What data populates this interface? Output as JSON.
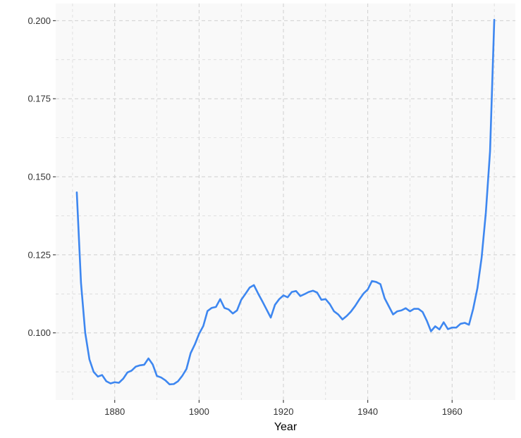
{
  "chart_data": {
    "type": "line",
    "title": "",
    "xlabel": "Year",
    "ylabel": "",
    "xlim": [
      1866,
      1975
    ],
    "ylim": [
      0.0785,
      0.2055
    ],
    "x_ticks": [
      1880,
      1900,
      1920,
      1940,
      1960
    ],
    "x_tick_labels": [
      "1880",
      "1900",
      "1920",
      "1940",
      "1960"
    ],
    "y_ticks": [
      0.1,
      0.125,
      0.15,
      0.175,
      0.2
    ],
    "y_tick_labels": [
      "0.100",
      "0.125",
      "0.150",
      "0.175",
      "0.200"
    ],
    "grid": true,
    "legend": "none",
    "colors": {
      "line": "#3e87f0",
      "panel": "#f9f9f9",
      "grid": "#cfcfcf"
    },
    "series": [
      {
        "x": [
          1871,
          1872,
          1873,
          1874,
          1875,
          1876,
          1877,
          1878,
          1879,
          1880,
          1881,
          1882,
          1883,
          1884,
          1885,
          1886,
          1887,
          1888,
          1889,
          1890,
          1891,
          1892,
          1893,
          1894,
          1895,
          1896,
          1897,
          1898,
          1899,
          1900,
          1901,
          1902,
          1903,
          1904,
          1905,
          1906,
          1907,
          1908,
          1909,
          1910,
          1911,
          1912,
          1913,
          1914,
          1915,
          1916,
          1917,
          1918,
          1919,
          1920,
          1921,
          1922,
          1923,
          1924,
          1925,
          1926,
          1927,
          1928,
          1929,
          1930,
          1931,
          1932,
          1933,
          1934,
          1935,
          1936,
          1937,
          1938,
          1939,
          1940,
          1941,
          1942,
          1943,
          1944,
          1945,
          1946,
          1947,
          1948,
          1949,
          1950,
          1951,
          1952,
          1953,
          1954,
          1955,
          1956,
          1957,
          1958,
          1959,
          1960,
          1961,
          1962,
          1963,
          1964,
          1965,
          1966,
          1967,
          1968,
          1969,
          1970
        ],
        "values": [
          0.145,
          0.116,
          0.1,
          0.0915,
          0.0875,
          0.086,
          0.0865,
          0.0845,
          0.0838,
          0.0842,
          0.084,
          0.0853,
          0.0873,
          0.0879,
          0.0892,
          0.0896,
          0.0898,
          0.0918,
          0.0899,
          0.0862,
          0.0857,
          0.0848,
          0.0835,
          0.0836,
          0.0845,
          0.0862,
          0.0884,
          0.0935,
          0.0963,
          0.0997,
          0.1022,
          0.107,
          0.108,
          0.1083,
          0.1108,
          0.108,
          0.1075,
          0.1062,
          0.1072,
          0.1106,
          0.1125,
          0.1145,
          0.1153,
          0.1126,
          0.1101,
          0.1075,
          0.1049,
          0.109,
          0.1108,
          0.112,
          0.1114,
          0.1131,
          0.1134,
          0.1118,
          0.1124,
          0.1131,
          0.1135,
          0.1129,
          0.1106,
          0.1108,
          0.1092,
          0.1069,
          0.1059,
          0.1043,
          0.1054,
          0.1068,
          0.1086,
          0.1107,
          0.1126,
          0.1139,
          0.1166,
          0.1163,
          0.1156,
          0.1111,
          0.1085,
          0.1059,
          0.1069,
          0.1072,
          0.1079,
          0.1069,
          0.1077,
          0.1077,
          0.1067,
          0.1039,
          0.1005,
          0.1021,
          0.1011,
          0.1034,
          0.1012,
          0.1017,
          0.1017,
          0.1029,
          0.1032,
          0.1026,
          0.1077,
          0.1143,
          0.1241,
          0.1385,
          0.1582,
          0.2003
        ]
      }
    ]
  }
}
